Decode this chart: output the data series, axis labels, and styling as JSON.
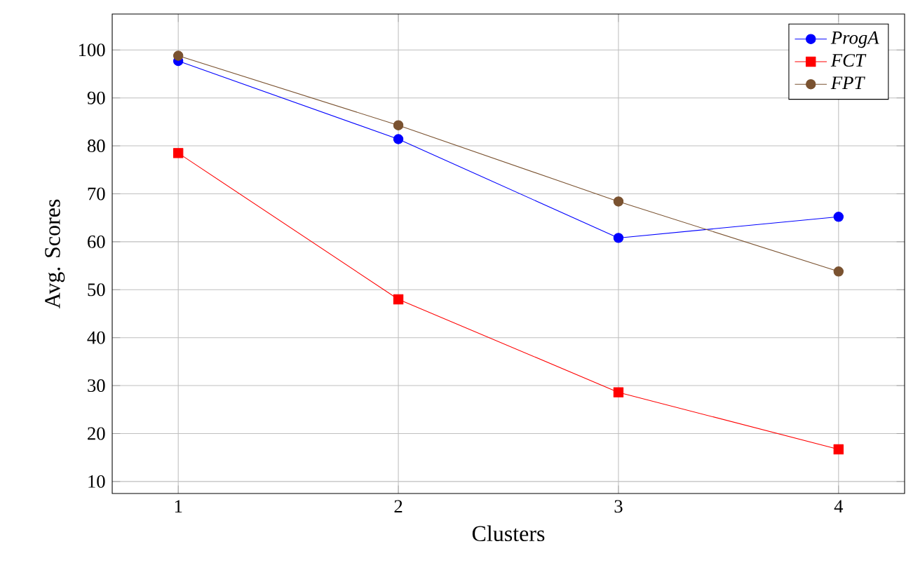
{
  "chart_data": {
    "type": "line",
    "xlabel": "Clusters",
    "ylabel": "Avg. Scores",
    "x": [
      1,
      2,
      3,
      4
    ],
    "series": [
      {
        "name": "ProgA",
        "color": "#0000ff",
        "marker": "circle",
        "values": [
          97.7,
          81.4,
          60.8,
          65.2
        ]
      },
      {
        "name": "FCT",
        "color": "#ff0000",
        "marker": "square",
        "values": [
          78.5,
          48,
          28.6,
          16.7
        ]
      },
      {
        "name": "FPT",
        "color": "#7a5230",
        "marker": "circle",
        "values": [
          98.8,
          84.3,
          68.4,
          53.8
        ]
      }
    ],
    "xlim": [
      0.7,
      4.3
    ],
    "ylim": [
      7.5,
      107.5
    ],
    "xticks": [
      1,
      2,
      3,
      4
    ],
    "yticks": [
      10,
      20,
      30,
      40,
      50,
      60,
      70,
      80,
      90,
      100
    ],
    "grid": true,
    "legend": "top right",
    "line_style": "solid"
  }
}
